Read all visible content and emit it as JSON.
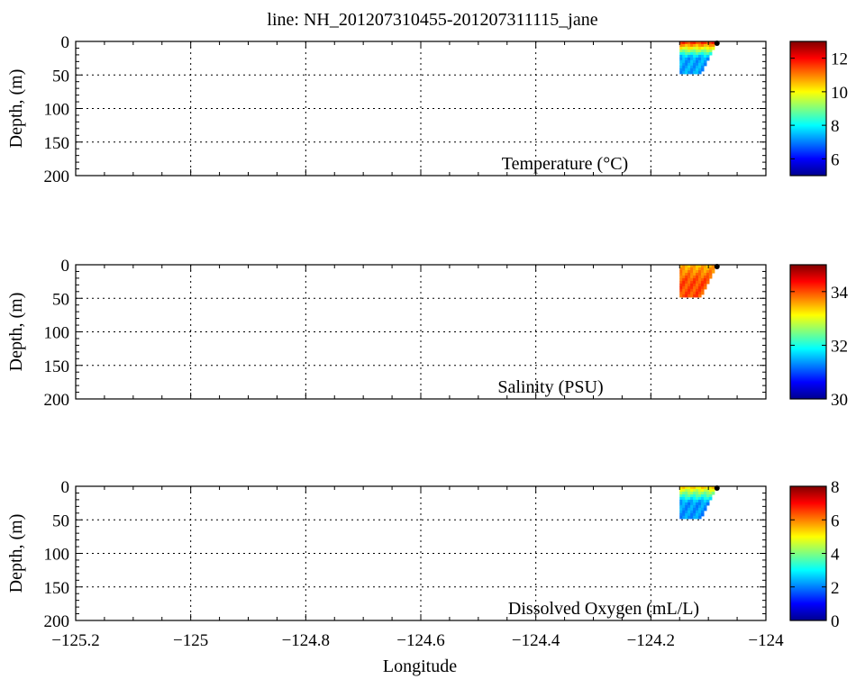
{
  "chart_data": {
    "title": "line: NH_201207310455-201207311115_jane",
    "xlabel": "Longitude",
    "xlim": [
      -125.2,
      -124.0
    ],
    "xticks": [
      -125.2,
      -125,
      -124.8,
      -124.6,
      -124.4,
      -124.2,
      -124
    ],
    "xtick_labels": [
      "−125.2",
      "−125",
      "−124.8",
      "−124.6",
      "−124.4",
      "−124.2",
      "−124"
    ],
    "grid": true,
    "panels": [
      {
        "type": "heatmap",
        "label": "Temperature (°C)",
        "ylabel": "Depth, (m)",
        "ylim": [
          0,
          200
        ],
        "yticks": [
          0,
          50,
          100,
          150,
          200
        ],
        "colorbar": {
          "min": 5,
          "max": 13,
          "ticks": [
            6,
            8,
            10,
            12
          ]
        },
        "section": {
          "lon_west": -124.15,
          "lon_east": -124.085,
          "depth_max": 48
        },
        "surface_value": 11.5,
        "deep_value": 7.3,
        "station_lon": -124.085
      },
      {
        "type": "heatmap",
        "label": "Salinity (PSU)",
        "ylabel": "Depth, (m)",
        "ylim": [
          0,
          200
        ],
        "yticks": [
          0,
          50,
          100,
          150,
          200
        ],
        "colorbar": {
          "min": 30,
          "max": 35,
          "ticks": [
            30,
            32,
            34
          ]
        },
        "section": {
          "lon_west": -124.15,
          "lon_east": -124.085,
          "depth_max": 48
        },
        "surface_value": 33.5,
        "deep_value": 34.0,
        "station_lon": -124.085
      },
      {
        "type": "heatmap",
        "label": "Dissolved Oxygen (mL/L)",
        "ylabel": "Depth, (m)",
        "ylim": [
          0,
          200
        ],
        "yticks": [
          0,
          50,
          100,
          150,
          200
        ],
        "colorbar": {
          "min": 0,
          "max": 8,
          "ticks": [
            0,
            2,
            4,
            6,
            8
          ]
        },
        "section": {
          "lon_west": -124.15,
          "lon_east": -124.085,
          "depth_max": 48
        },
        "surface_value": 5.2,
        "deep_value": 2.2,
        "station_lon": -124.085
      }
    ]
  }
}
